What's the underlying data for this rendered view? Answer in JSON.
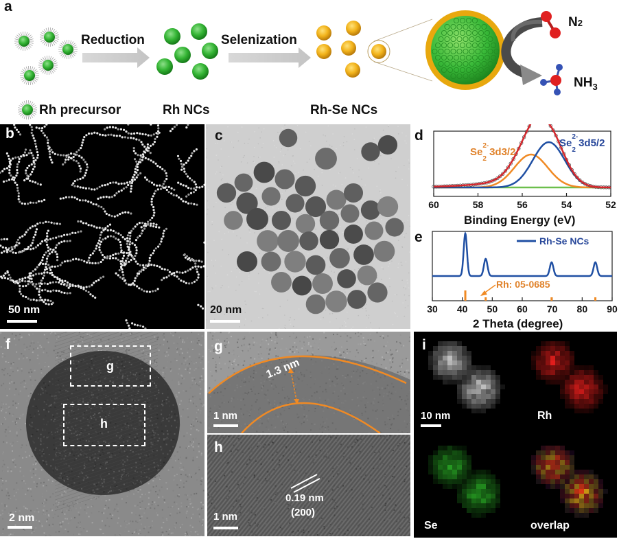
{
  "panel_a": {
    "label": "a",
    "step1": "Reduction",
    "step2": "Selenization",
    "legend_precursor": "Rh precursor",
    "label_rh_ncs": "Rh NCs",
    "label_rhse_ncs": "Rh-Se NCs",
    "n2": "N",
    "n2_sub": "2",
    "nh3": "NH",
    "nh3_sub": "3"
  },
  "panel_b": {
    "label": "b",
    "scale": "50 nm"
  },
  "panel_c": {
    "label": "c",
    "scale": "20 nm"
  },
  "panel_d": {
    "label": "d"
  },
  "panel_e": {
    "label": "e"
  },
  "panel_f": {
    "label": "f",
    "box_g": "g",
    "box_h": "h",
    "scale": "2 nm"
  },
  "panel_g": {
    "label": "g",
    "thickness": "1.3 nm",
    "scale": "1 nm"
  },
  "panel_h": {
    "label": "h",
    "spacing": "0.19 nm",
    "plane": "(200)",
    "scale": "1 nm"
  },
  "panel_i": {
    "label": "i",
    "scale": "10 nm",
    "rh": "Rh",
    "se": "Se",
    "overlap": "overlap"
  },
  "colors": {
    "green_nc": "#3db83d",
    "gold_shell": "#e8a80e",
    "red_map": "#e0201c",
    "green_map": "#2fb52a",
    "orange_line": "#f08a24",
    "blue_line": "#1f4fa3"
  },
  "chart_data": [
    {
      "type": "line",
      "panel": "d",
      "xlabel": "Binding Energy (eV)",
      "xlim": [
        60,
        52
      ],
      "x_ticks": [
        60,
        58,
        56,
        54,
        52
      ],
      "series": [
        {
          "name": "Se2- 3d3/2",
          "label_main": "Se",
          "label_sup": "2-",
          "label_sub": "2",
          "label_rest": " 3d3/2",
          "peak_x": 55.6,
          "color": "#f08a24"
        },
        {
          "name": "Se2- 3d5/2",
          "label_main": "Se",
          "label_sup": "2-",
          "label_sub": "2",
          "label_rest": " 3d5/2",
          "peak_x": 54.8,
          "color": "#1f4fa3"
        },
        {
          "name": "envelope",
          "peak_x": 55.0,
          "color": "#d4262c"
        },
        {
          "name": "background",
          "color": "#6cbf4c"
        }
      ]
    },
    {
      "type": "line",
      "panel": "e",
      "xlabel": "2 Theta (degree)",
      "xlim": [
        30,
        90
      ],
      "x_ticks": [
        30,
        40,
        50,
        60,
        70,
        80,
        90
      ],
      "series": [
        {
          "name": "Rh-Se NCs",
          "peaks": [
            41.0,
            47.8,
            69.8,
            84.4
          ],
          "color": "#1f4fa3"
        }
      ],
      "reference": {
        "name": "Rh: 05-0685",
        "lines": [
          41.0,
          47.8,
          69.8,
          84.4
        ],
        "color": "#f08a24"
      }
    }
  ]
}
